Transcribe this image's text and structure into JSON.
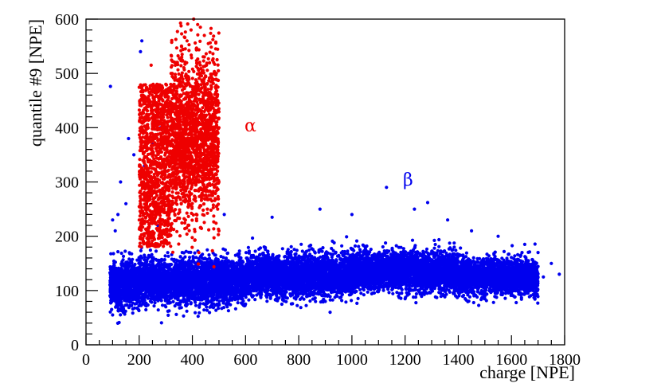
{
  "chart_data": {
    "type": "scatter",
    "xlabel": "charge [NPE]",
    "ylabel": "quantile #9 [NPE]",
    "xlim": [
      0,
      1800
    ],
    "ylim": [
      0,
      600
    ],
    "x_ticks": [
      0,
      200,
      400,
      600,
      800,
      1000,
      1200,
      1400,
      1600,
      1800
    ],
    "y_ticks": [
      0,
      100,
      200,
      300,
      400,
      500,
      600
    ],
    "x_tick_labels": [
      "0",
      "200",
      "400",
      "600",
      "800",
      "1000",
      "1200",
      "1400",
      "1600",
      "1800"
    ],
    "y_tick_labels": [
      "0",
      "100",
      "200",
      "300",
      "400",
      "500",
      "600"
    ],
    "grid": false,
    "legend": "none",
    "series": [
      {
        "color": "#0000ee",
        "annotation": {
          "text": "β",
          "x": 1210,
          "y": 305
        },
        "points": [
          [
            92,
            476
          ],
          [
            210,
            560
          ],
          [
            205,
            540
          ],
          [
            130,
            300
          ],
          [
            160,
            380
          ],
          [
            180,
            350
          ],
          [
            220,
            330
          ],
          [
            250,
            370
          ],
          [
            280,
            400
          ],
          [
            300,
            320
          ],
          [
            120,
            240
          ],
          [
            150,
            260
          ],
          [
            100,
            230
          ],
          [
            110,
            210
          ],
          [
            240,
            270
          ],
          [
            270,
            220
          ],
          [
            520,
            240
          ],
          [
            700,
            235
          ],
          [
            880,
            250
          ],
          [
            1000,
            240
          ],
          [
            1130,
            290
          ],
          [
            1235,
            250
          ],
          [
            1285,
            262
          ],
          [
            1360,
            230
          ],
          [
            1450,
            210
          ],
          [
            1550,
            200
          ],
          [
            1650,
            185
          ],
          [
            1700,
            170
          ],
          [
            1750,
            150
          ],
          [
            1780,
            130
          ],
          [
            1720,
            125
          ],
          [
            1680,
            100
          ],
          [
            140,
            60
          ],
          [
            100,
            55
          ],
          [
            300,
            70
          ],
          [
            600,
            75
          ],
          [
            900,
            80
          ],
          [
            1200,
            85
          ],
          [
            1500,
            90
          ]
        ],
        "bands": [
          {
            "x": [
              90,
              200
            ],
            "y_center": 112,
            "y_sd": 22
          },
          {
            "x": [
              200,
              600
            ],
            "y_center": 118,
            "y_sd": 20
          },
          {
            "x": [
              600,
              1000
            ],
            "y_center": 128,
            "y_sd": 19
          },
          {
            "x": [
              1000,
              1400
            ],
            "y_center": 135,
            "y_sd": 18
          },
          {
            "x": [
              1400,
              1700
            ],
            "y_center": 125,
            "y_sd": 16
          }
        ]
      },
      {
        "color": "#ee0000",
        "annotation": {
          "text": "α",
          "x": 620,
          "y": 405
        },
        "points": [
          [
            405,
            600
          ],
          [
            420,
            590
          ],
          [
            430,
            585
          ],
          [
            395,
            580
          ],
          [
            445,
            570
          ],
          [
            380,
            560
          ],
          [
            460,
            555
          ],
          [
            230,
            470
          ],
          [
            245,
            515
          ],
          [
            225,
            400
          ],
          [
            215,
            340
          ],
          [
            210,
            300
          ],
          [
            205,
            260
          ],
          [
            200,
            230
          ],
          [
            215,
            190
          ],
          [
            250,
            440
          ],
          [
            260,
            380
          ],
          [
            280,
            460
          ],
          [
            300,
            480
          ],
          [
            320,
            500
          ],
          [
            340,
            520
          ],
          [
            360,
            530
          ],
          [
            480,
            520
          ],
          [
            490,
            500
          ],
          [
            495,
            450
          ],
          [
            500,
            400
          ],
          [
            500,
            300
          ],
          [
            495,
            250
          ],
          [
            500,
            210
          ]
        ],
        "bands": [
          {
            "x": [
              200,
              320
            ],
            "y_range": [
              180,
              480
            ]
          },
          {
            "x": [
              320,
              500
            ],
            "y_center": 380,
            "y_sd": 75
          }
        ]
      }
    ]
  }
}
